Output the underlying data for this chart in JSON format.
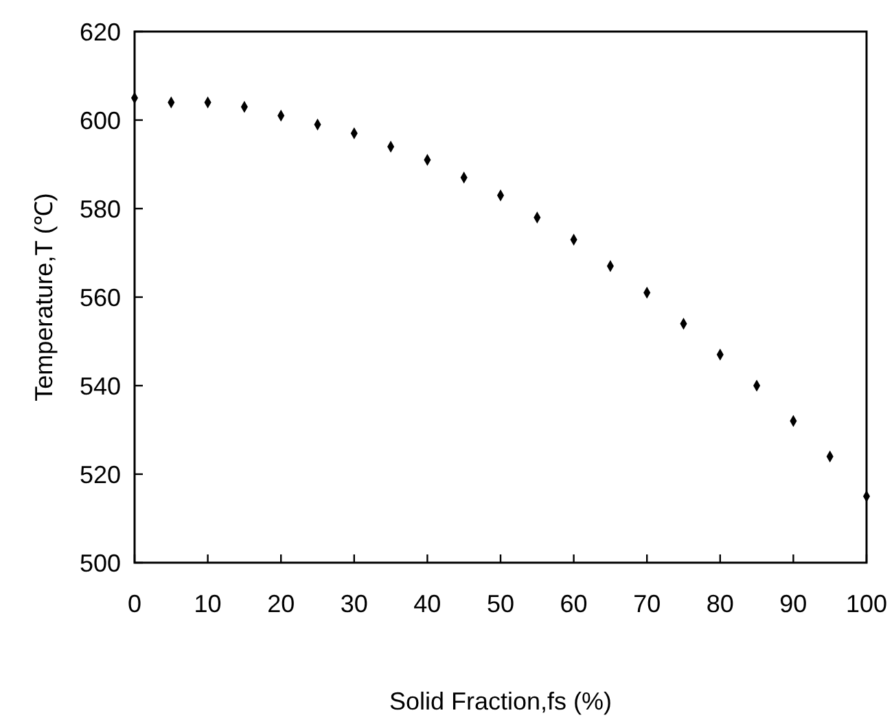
{
  "chart_data": {
    "type": "scatter",
    "xlabel": "Solid Fraction,fs (%)",
    "ylabel": "Temperature,T (℃)",
    "x": [
      0,
      5,
      10,
      15,
      20,
      25,
      30,
      35,
      40,
      45,
      50,
      55,
      60,
      65,
      70,
      75,
      80,
      85,
      90,
      95,
      100
    ],
    "series": [
      {
        "color": "#000000",
        "values": [
          605,
          604,
          604,
          603,
          601,
          599,
          597,
          594,
          591,
          587,
          583,
          578,
          573,
          567,
          561,
          554,
          547,
          540,
          532,
          524,
          515
        ]
      }
    ],
    "xlim": [
      0,
      100
    ],
    "xticks": [
      0,
      10,
      20,
      30,
      40,
      50,
      60,
      70,
      80,
      90,
      100
    ],
    "ylim": [
      500,
      620
    ],
    "yticks": [
      500,
      520,
      540,
      560,
      580,
      600,
      620
    ],
    "marker": "diamond",
    "grid": false
  }
}
